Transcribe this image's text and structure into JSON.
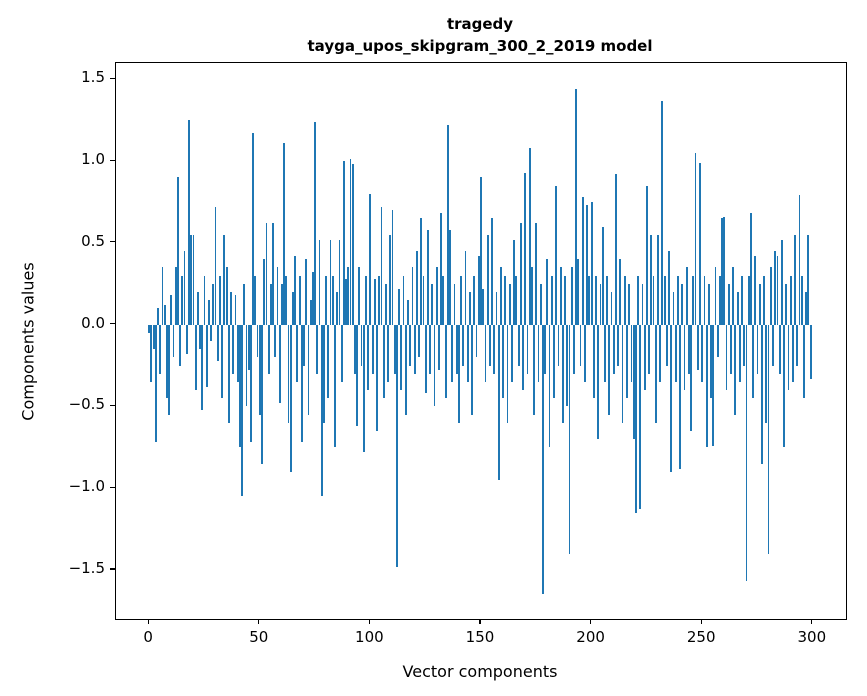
{
  "chart_data": {
    "type": "bar",
    "title": "tragedy",
    "subtitle": "tayga_upos_skipgram_300_2_2019 model",
    "xlabel": "Vector components",
    "ylabel": "Components values",
    "xlim": [
      -15,
      315
    ],
    "ylim": [
      -1.8,
      1.6
    ],
    "x_ticks": [
      0,
      50,
      100,
      150,
      200,
      250,
      300
    ],
    "y_ticks": [
      -1.5,
      -1.0,
      -0.5,
      0.0,
      0.5,
      1.0,
      1.5
    ],
    "bar_color": "#1f77b4",
    "grid": false,
    "legend": null,
    "values": [
      -0.05,
      -0.35,
      -0.15,
      -0.72,
      0.1,
      -0.3,
      0.35,
      0.12,
      -0.45,
      -0.55,
      0.18,
      -0.2,
      0.35,
      0.9,
      -0.25,
      0.3,
      0.45,
      -0.18,
      1.25,
      0.55,
      0.55,
      -0.4,
      0.2,
      -0.15,
      -0.52,
      0.3,
      -0.38,
      0.15,
      -0.1,
      0.25,
      0.72,
      -0.22,
      0.3,
      -0.45,
      0.55,
      0.35,
      -0.6,
      0.2,
      -0.3,
      0.18,
      -0.35,
      -0.75,
      -1.05,
      0.25,
      -0.5,
      -0.28,
      -0.72,
      1.17,
      0.3,
      -0.2,
      -0.55,
      -0.85,
      0.4,
      0.62,
      -0.3,
      0.25,
      0.62,
      -0.2,
      0.35,
      -0.48,
      0.25,
      1.11,
      0.3,
      -0.6,
      -0.9,
      0.2,
      0.42,
      -0.35,
      0.3,
      -0.72,
      -0.25,
      0.4,
      -0.55,
      0.15,
      0.32,
      1.24,
      -0.3,
      0.52,
      -1.05,
      -0.6,
      0.3,
      -0.45,
      0.52,
      0.3,
      -0.75,
      0.2,
      0.52,
      -0.35,
      1.0,
      0.28,
      0.35,
      1.01,
      0.98,
      -0.3,
      -0.62,
      0.35,
      -0.25,
      -0.78,
      0.3,
      -0.4,
      0.8,
      -0.3,
      0.28,
      -0.65,
      0.3,
      0.72,
      -0.45,
      0.25,
      -0.35,
      0.55,
      0.7,
      -0.3,
      -1.48,
      0.22,
      -0.4,
      0.3,
      -0.55,
      0.15,
      -0.25,
      0.35,
      -0.3,
      0.45,
      -0.2,
      0.65,
      0.3,
      -0.42,
      0.58,
      -0.3,
      0.25,
      -0.5,
      0.35,
      -0.28,
      0.68,
      0.3,
      -0.45,
      1.22,
      0.58,
      -0.35,
      0.25,
      -0.3,
      -0.6,
      0.3,
      -0.25,
      0.45,
      -0.35,
      0.2,
      -0.55,
      0.3,
      -0.2,
      0.42,
      0.9,
      0.22,
      -0.35,
      0.55,
      -0.25,
      0.65,
      -0.3,
      0.2,
      -0.95,
      0.35,
      -0.45,
      0.3,
      -0.6,
      0.25,
      -0.35,
      0.52,
      0.3,
      -0.25,
      0.62,
      -0.4,
      0.93,
      -0.3,
      1.08,
      0.35,
      -0.55,
      0.62,
      -0.35,
      0.25,
      -1.65,
      -0.3,
      0.4,
      -0.75,
      0.3,
      -0.45,
      0.85,
      -0.25,
      0.35,
      -0.6,
      0.3,
      -0.5,
      -1.4,
      0.35,
      -0.3,
      1.44,
      0.4,
      -0.25,
      0.78,
      -0.35,
      0.73,
      0.3,
      0.75,
      -0.45,
      0.3,
      -0.7,
      0.25,
      0.6,
      -0.35,
      0.3,
      -0.55,
      0.2,
      -0.3,
      0.92,
      -0.25,
      0.4,
      -0.6,
      0.3,
      -0.45,
      0.25,
      -0.35,
      -0.7,
      -1.15,
      0.3,
      -1.13,
      0.25,
      -0.4,
      0.85,
      -0.3,
      0.55,
      0.3,
      -0.6,
      0.55,
      -0.35,
      1.37,
      0.3,
      -0.25,
      0.45,
      -0.9,
      0.2,
      -0.35,
      0.3,
      -0.88,
      0.25,
      -0.4,
      0.35,
      -0.3,
      -0.65,
      0.3,
      1.05,
      -0.28,
      0.99,
      -0.35,
      0.3,
      -0.75,
      0.25,
      -0.45,
      -0.74,
      0.35,
      -0.2,
      0.3,
      0.65,
      0.66,
      -0.4,
      0.25,
      -0.3,
      0.35,
      -0.55,
      0.2,
      -0.35,
      0.3,
      -0.25,
      -1.57,
      0.3,
      0.68,
      -0.45,
      0.42,
      -0.3,
      0.25,
      -0.85,
      0.3,
      -0.6,
      -1.4,
      0.35,
      -0.25,
      0.45,
      0.42,
      -0.3,
      0.52,
      -0.75,
      0.25,
      -0.4,
      0.3,
      -0.35,
      0.55,
      -0.25,
      0.79,
      0.3,
      -0.45,
      0.2,
      0.55,
      -0.33
    ]
  }
}
